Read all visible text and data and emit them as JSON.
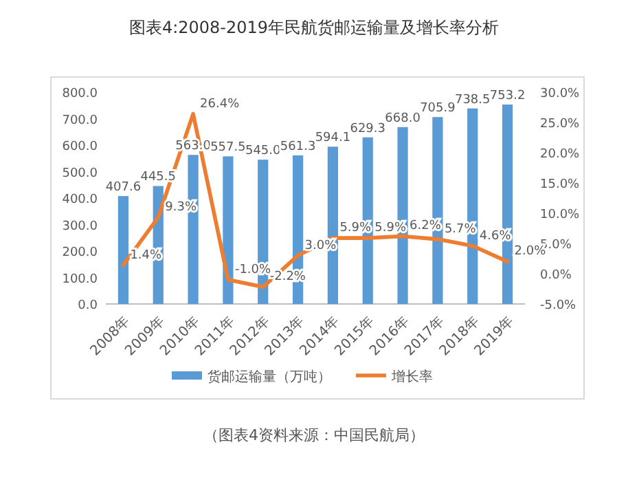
{
  "chart_data": {
    "type": "bar",
    "title": "图表4:2008-2019年民航货邮运输量及增长率分析",
    "categories": [
      "2008年",
      "2009年",
      "2010年",
      "2011年",
      "2012年",
      "2013年",
      "2014年",
      "2015年",
      "2016年",
      "2017年",
      "2018年",
      "2019年"
    ],
    "series": [
      {
        "name": "货邮运输量（万吨）",
        "color": "#5b9bd5",
        "values": [
          407.6,
          445.5,
          563.0,
          557.5,
          545.0,
          561.3,
          594.1,
          629.3,
          668.0,
          705.9,
          738.5,
          753.2
        ],
        "value_labels": [
          "407.6",
          "445.5",
          "563.0",
          "557.5",
          "545.0",
          "561.3",
          "594.1",
          "629.3",
          "668.0",
          "705.9",
          "738.5",
          "753.2"
        ]
      },
      {
        "name": "增长率",
        "type": "line",
        "axis": "y2",
        "color": "#ed7d31",
        "values": [
          1.4,
          9.3,
          26.4,
          -1.0,
          -2.2,
          3.0,
          5.9,
          5.9,
          6.2,
          5.7,
          4.6,
          2.0
        ],
        "value_labels": [
          "1.4%",
          "9.3%",
          "26.4%",
          "-1.0%",
          "-2.2%",
          "3.0%",
          "5.9%",
          "5.9%",
          "6.2%",
          "5.7%",
          "4.6%",
          "2.0%"
        ]
      }
    ],
    "ylim": [
      0,
      800
    ],
    "yticks": [
      {
        "value": 0,
        "label": "0.0"
      },
      {
        "value": 100,
        "label": "100.0"
      },
      {
        "value": 200,
        "label": "200.0"
      },
      {
        "value": 300,
        "label": "300.0"
      },
      {
        "value": 400,
        "label": "400.0"
      },
      {
        "value": 500,
        "label": "500.0"
      },
      {
        "value": 600,
        "label": "600.0"
      },
      {
        "value": 700,
        "label": "700.0"
      },
      {
        "value": 800,
        "label": "800.0"
      }
    ],
    "y2lim": [
      -5,
      30
    ],
    "y2ticks": [
      {
        "value": -5,
        "label": "-5.0%"
      },
      {
        "value": 0,
        "label": "0.0%"
      },
      {
        "value": 5,
        "label": "5.0%"
      },
      {
        "value": 10,
        "label": "10.0%"
      },
      {
        "value": 15,
        "label": "15.0%"
      },
      {
        "value": 20,
        "label": "20.0%"
      },
      {
        "value": 25,
        "label": "25.0%"
      },
      {
        "value": 30,
        "label": "30.0%"
      }
    ],
    "legend": "bottom",
    "annotations": [
      "（图表4资料来源：中国民航局）"
    ]
  }
}
